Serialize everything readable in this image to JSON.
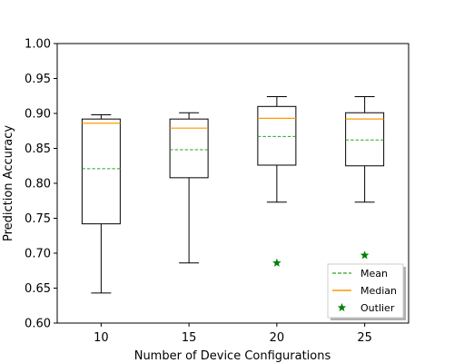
{
  "chart_data": {
    "type": "box",
    "xlabel": "Number of Device Configurations",
    "ylabel": "Prediction Accuracy",
    "ylim": [
      0.6,
      1.0
    ],
    "yticks": [
      "0.60",
      "0.65",
      "0.70",
      "0.75",
      "0.80",
      "0.85",
      "0.90",
      "0.95",
      "1.00"
    ],
    "categories": [
      "10",
      "15",
      "20",
      "25"
    ],
    "boxes": [
      {
        "category": "10",
        "whisker_low": 0.643,
        "q1": 0.742,
        "median": 0.886,
        "mean": 0.821,
        "q3": 0.892,
        "whisker_high": 0.898,
        "outliers": []
      },
      {
        "category": "15",
        "whisker_low": 0.686,
        "q1": 0.808,
        "median": 0.879,
        "mean": 0.848,
        "q3": 0.892,
        "whisker_high": 0.901,
        "outliers": []
      },
      {
        "category": "20",
        "whisker_low": 0.773,
        "q1": 0.826,
        "median": 0.893,
        "mean": 0.867,
        "q3": 0.91,
        "whisker_high": 0.924,
        "outliers": [
          0.686
        ]
      },
      {
        "category": "25",
        "whisker_low": 0.773,
        "q1": 0.825,
        "median": 0.892,
        "mean": 0.862,
        "q3": 0.901,
        "whisker_high": 0.924,
        "outliers": [
          0.697
        ]
      }
    ],
    "legend": {
      "position": "lower-right",
      "entries": [
        {
          "label": "Mean",
          "style": "dashed-line",
          "color": "#2ca02c"
        },
        {
          "label": "Median",
          "style": "line",
          "color": "#ff9900"
        },
        {
          "label": "Outlier",
          "style": "star-marker",
          "color": "#008000"
        }
      ]
    },
    "colors": {
      "box": "#000000",
      "median": "#ff9900",
      "mean": "#2ca02c",
      "outlier": "#008000"
    },
    "grid": false
  }
}
